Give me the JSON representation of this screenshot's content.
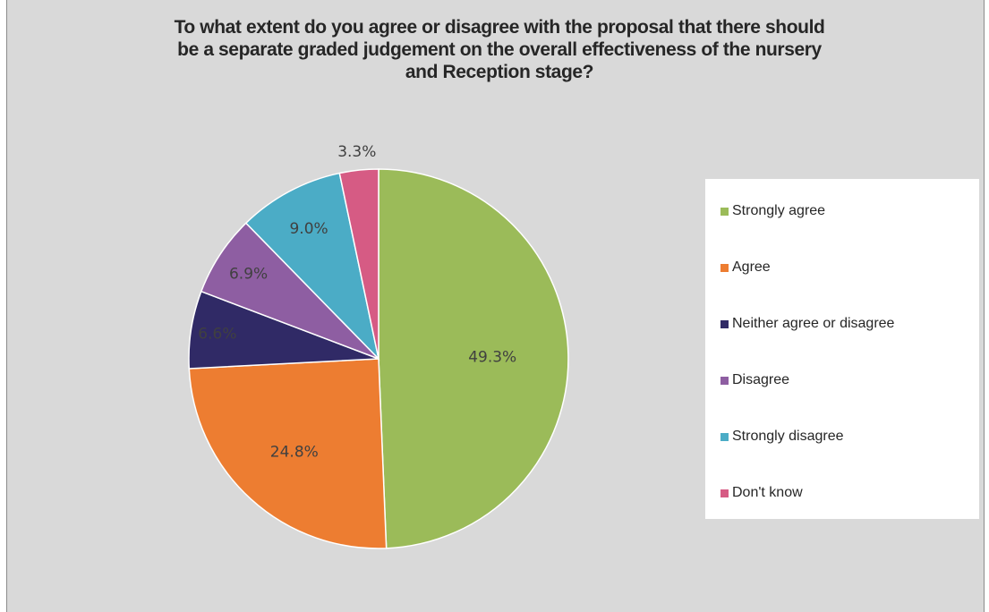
{
  "colors": {
    "background": "#d9d9d9",
    "Strongly agree": "#9bbb59",
    "Agree": "#ed7d31",
    "Neither agree or disagree": "#302a66",
    "Disagree": "#8e5ea2",
    "Strongly disagree": "#4bacc6",
    "Don't know": "#d65b84"
  },
  "chart_data": {
    "type": "pie",
    "title": "To what extent do you agree or disagree with the proposal that there should be a separate graded judgement on the overall effectiveness of the nursery and Reception stage?",
    "title_lines": [
      "To what extent do you agree or disagree with the proposal that there should",
      "be a separate graded judgement on the overall effectiveness of the nursery",
      "and Reception stage?"
    ],
    "categories": [
      "Strongly agree",
      "Agree",
      "Neither agree or disagree",
      "Disagree",
      "Strongly disagree",
      "Don't know"
    ],
    "values": [
      49.3,
      24.8,
      6.6,
      6.9,
      9.0,
      3.3
    ],
    "data_labels": [
      "49.3%",
      "24.8%",
      "6.6%",
      "6.9%",
      "9.0%",
      "3.3%"
    ],
    "legend_position": "right",
    "start_angle_deg": 0,
    "direction": "clockwise"
  }
}
